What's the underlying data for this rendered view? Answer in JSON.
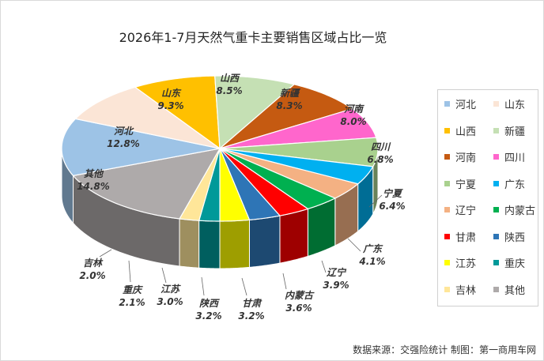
{
  "chart_data": {
    "type": "pie",
    "title": "2026年1-7月天然气重卡主要销售区域占比一览",
    "slices": [
      {
        "name": "河北",
        "value": 12.8,
        "label": "12.8%",
        "color": "#9dc3e6"
      },
      {
        "name": "山东",
        "value": 9.3,
        "label": "9.3%",
        "color": "#fbe5d6"
      },
      {
        "name": "山西",
        "value": 8.5,
        "label": "8.5%",
        "color": "#ffc000"
      },
      {
        "name": "新疆",
        "value": 8.3,
        "label": "8.3%",
        "color": "#c5e0b4"
      },
      {
        "name": "河南",
        "value": 8.0,
        "label": "8.0%",
        "color": "#c55a11"
      },
      {
        "name": "四川",
        "value": 6.8,
        "label": "6.8%",
        "color": "#ff66cc"
      },
      {
        "name": "宁夏",
        "value": 6.4,
        "label": "6.4%",
        "color": "#a9d18e"
      },
      {
        "name": "广东",
        "value": 4.1,
        "label": "4.1%",
        "color": "#00b0f0"
      },
      {
        "name": "辽宁",
        "value": 3.9,
        "label": "3.9%",
        "color": "#f4b183"
      },
      {
        "name": "内蒙古",
        "value": 3.6,
        "label": "3.6%",
        "color": "#00b050"
      },
      {
        "name": "甘肃",
        "value": 3.2,
        "label": "3.2%",
        "color": "#ff0000"
      },
      {
        "name": "陕西",
        "value": 3.2,
        "label": "3.2%",
        "color": "#2e75b6"
      },
      {
        "name": "江苏",
        "value": 3.0,
        "label": "3.0%",
        "color": "#ffff00"
      },
      {
        "name": "重庆",
        "value": 2.1,
        "label": "2.1%",
        "color": "#009999"
      },
      {
        "name": "吉林",
        "value": 2.0,
        "label": "2.0%",
        "color": "#ffe699"
      },
      {
        "name": "其他",
        "value": 14.8,
        "label": "14.8%",
        "color": "#aeaaaa"
      }
    ],
    "legend_position": "right",
    "start": "top, clockwise from 山西"
  },
  "footer": {
    "source": "数据来源：交强险统计  制图：第一商用车网"
  }
}
